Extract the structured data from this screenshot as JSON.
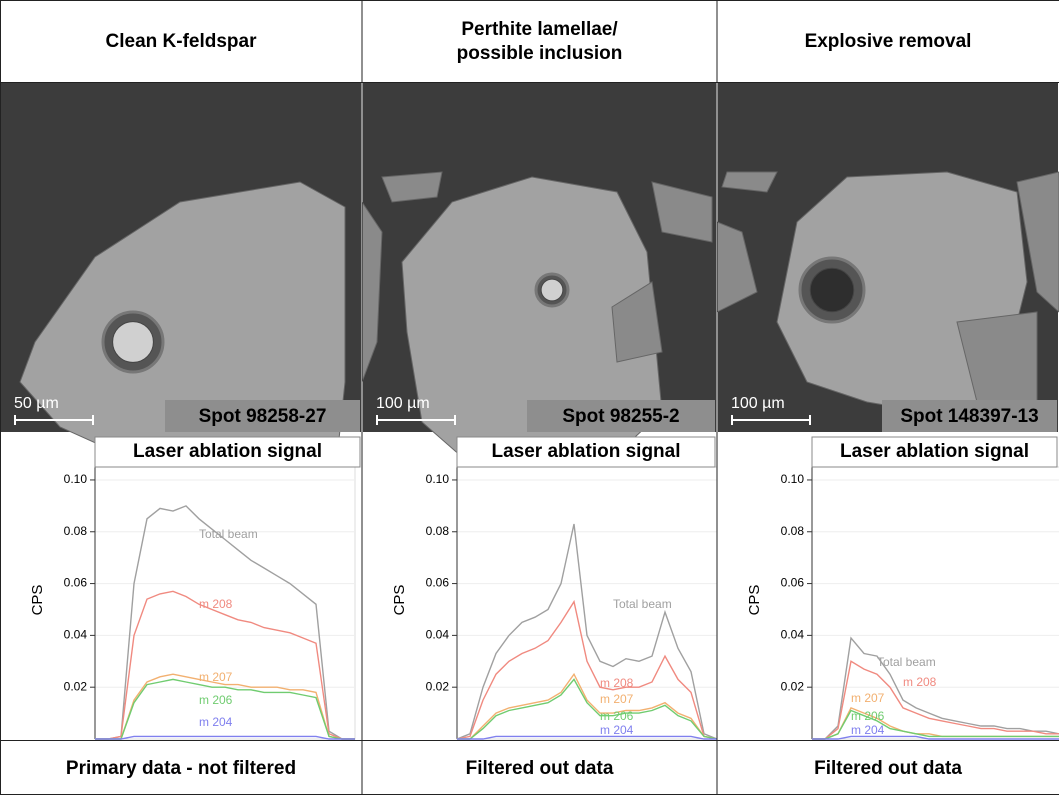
{
  "panels": [
    {
      "header": [
        "Clean K-feldspar"
      ],
      "scale_bar": "50 µm",
      "spot": "Spot 98258-27",
      "footer": "Primary data - not filtered"
    },
    {
      "header": [
        "Perthite lamellae/",
        "possible inclusion"
      ],
      "scale_bar": "100 µm",
      "spot": "Spot 98255-2",
      "footer": "Filtered out data"
    },
    {
      "header": [
        "Explosive removal"
      ],
      "scale_bar": "100 µm",
      "spot": "Spot 148397-13",
      "footer": "Filtered out data"
    }
  ],
  "chart_data": [
    {
      "type": "line",
      "title": "Laser ablation signal",
      "y_label": "CPS",
      "xlim": [
        0,
        40
      ],
      "ylim": [
        0,
        0.105
      ],
      "yticks": [
        0.02,
        0.04,
        0.06,
        0.08,
        {
          "value": 0.1,
          "label": "0.10"
        }
      ],
      "grid": true,
      "x": [
        0,
        2,
        4,
        6,
        8,
        10,
        12,
        14,
        16,
        18,
        20,
        22,
        24,
        26,
        28,
        30,
        32,
        34,
        36,
        38,
        40
      ],
      "series": [
        {
          "name": "Total beam",
          "color": "#a0a0a0",
          "values": [
            0,
            0,
            0.001,
            0.06,
            0.085,
            0.089,
            0.088,
            0.09,
            0.085,
            0.081,
            0.077,
            0.073,
            0.069,
            0.066,
            0.063,
            0.06,
            0.056,
            0.052,
            0.003,
            0,
            0
          ]
        },
        {
          "name": "m 208",
          "color": "#f08a80",
          "values": [
            0,
            0,
            0.001,
            0.04,
            0.054,
            0.056,
            0.057,
            0.055,
            0.052,
            0.05,
            0.048,
            0.046,
            0.045,
            0.043,
            0.042,
            0.041,
            0.039,
            0.037,
            0.002,
            0,
            0
          ]
        },
        {
          "name": "m 207",
          "color": "#f2b070",
          "values": [
            0,
            0,
            0,
            0.015,
            0.022,
            0.024,
            0.025,
            0.024,
            0.023,
            0.022,
            0.021,
            0.021,
            0.02,
            0.02,
            0.02,
            0.019,
            0.019,
            0.018,
            0.001,
            0,
            0
          ]
        },
        {
          "name": "m 206",
          "color": "#70cc70",
          "values": [
            0,
            0,
            0,
            0.014,
            0.021,
            0.022,
            0.023,
            0.022,
            0.021,
            0.02,
            0.02,
            0.019,
            0.019,
            0.018,
            0.018,
            0.018,
            0.017,
            0.016,
            0.001,
            0,
            0
          ]
        },
        {
          "name": "m 204",
          "color": "#8080ee",
          "values": [
            0,
            0,
            0,
            0.001,
            0.001,
            0.001,
            0.001,
            0.001,
            0.001,
            0.001,
            0.001,
            0.001,
            0.001,
            0.001,
            0.001,
            0.001,
            0.001,
            0.001,
            0,
            0,
            0
          ]
        }
      ]
    },
    {
      "type": "line",
      "title": "Laser ablation signal",
      "y_label": "CPS",
      "xlim": [
        0,
        40
      ],
      "ylim": [
        0,
        0.105
      ],
      "yticks": [
        0.02,
        0.04,
        0.06,
        0.08,
        {
          "value": 0.1,
          "label": "0.10"
        }
      ],
      "grid": true,
      "x": [
        0,
        2,
        4,
        6,
        8,
        10,
        12,
        14,
        16,
        18,
        20,
        22,
        24,
        26,
        28,
        30,
        32,
        34,
        36,
        38,
        40
      ],
      "series": [
        {
          "name": "Total beam",
          "color": "#a0a0a0",
          "values": [
            0,
            0.002,
            0.02,
            0.033,
            0.04,
            0.045,
            0.047,
            0.05,
            0.06,
            0.083,
            0.04,
            0.03,
            0.028,
            0.031,
            0.03,
            0.032,
            0.049,
            0.035,
            0.026,
            0.002,
            0
          ]
        },
        {
          "name": "m 208",
          "color": "#f08a80",
          "values": [
            0,
            0.001,
            0.015,
            0.025,
            0.03,
            0.033,
            0.035,
            0.038,
            0.045,
            0.053,
            0.03,
            0.02,
            0.019,
            0.02,
            0.02,
            0.022,
            0.032,
            0.023,
            0.018,
            0.001,
            0
          ]
        },
        {
          "name": "m 207",
          "color": "#f2b070",
          "values": [
            0,
            0,
            0.005,
            0.01,
            0.012,
            0.013,
            0.014,
            0.015,
            0.018,
            0.025,
            0.015,
            0.01,
            0.01,
            0.011,
            0.011,
            0.012,
            0.014,
            0.01,
            0.008,
            0.001,
            0
          ]
        },
        {
          "name": "m 206",
          "color": "#70cc70",
          "values": [
            0,
            0,
            0.004,
            0.009,
            0.011,
            0.012,
            0.013,
            0.014,
            0.017,
            0.023,
            0.014,
            0.009,
            0.009,
            0.01,
            0.01,
            0.011,
            0.013,
            0.009,
            0.007,
            0.001,
            0
          ]
        },
        {
          "name": "m 204",
          "color": "#8080ee",
          "values": [
            0,
            0,
            0,
            0.001,
            0.001,
            0.001,
            0.001,
            0.001,
            0.001,
            0.001,
            0.001,
            0.001,
            0.001,
            0.001,
            0.001,
            0.001,
            0.001,
            0.001,
            0.001,
            0,
            0
          ]
        }
      ]
    },
    {
      "type": "line",
      "title": "Laser ablation signal",
      "y_label": "CPS",
      "xlim": [
        0,
        40
      ],
      "ylim": [
        0,
        0.105
      ],
      "yticks": [
        0.02,
        0.04,
        0.06,
        0.08,
        {
          "value": 0.1,
          "label": "0.10"
        }
      ],
      "grid": true,
      "x": [
        0,
        2,
        4,
        6,
        8,
        10,
        12,
        14,
        16,
        18,
        20,
        22,
        24,
        26,
        28,
        30,
        32,
        34,
        36,
        38,
        40
      ],
      "series": [
        {
          "name": "Total beam",
          "color": "#a0a0a0",
          "values": [
            0,
            0,
            0.005,
            0.039,
            0.033,
            0.032,
            0.025,
            0.015,
            0.012,
            0.01,
            0.008,
            0.007,
            0.006,
            0.005,
            0.005,
            0.004,
            0.004,
            0.003,
            0.003,
            0.002,
            0.002
          ]
        },
        {
          "name": "m 208",
          "color": "#f08a80",
          "values": [
            0,
            0,
            0.004,
            0.03,
            0.027,
            0.025,
            0.02,
            0.012,
            0.01,
            0.008,
            0.007,
            0.006,
            0.005,
            0.004,
            0.004,
            0.003,
            0.003,
            0.003,
            0.002,
            0.002,
            0.002
          ]
        },
        {
          "name": "m 207",
          "color": "#f2b070",
          "values": [
            0,
            0,
            0.002,
            0.012,
            0.01,
            0.008,
            0.005,
            0.003,
            0.002,
            0.002,
            0.001,
            0.001,
            0.001,
            0.001,
            0.001,
            0.001,
            0.001,
            0.001,
            0.001,
            0.001,
            0.001
          ]
        },
        {
          "name": "m 206",
          "color": "#70cc70",
          "values": [
            0,
            0,
            0.002,
            0.011,
            0.009,
            0.007,
            0.004,
            0.003,
            0.002,
            0.001,
            0.001,
            0.001,
            0.001,
            0.001,
            0.001,
            0.001,
            0.001,
            0.001,
            0.001,
            0.001,
            0.001
          ]
        },
        {
          "name": "m 204",
          "color": "#8080ee",
          "values": [
            0,
            0,
            0,
            0.001,
            0.001,
            0.001,
            0.001,
            0.001,
            0.001,
            0,
            0,
            0,
            0,
            0,
            0,
            0,
            0,
            0,
            0,
            0,
            0
          ]
        }
      ]
    }
  ]
}
